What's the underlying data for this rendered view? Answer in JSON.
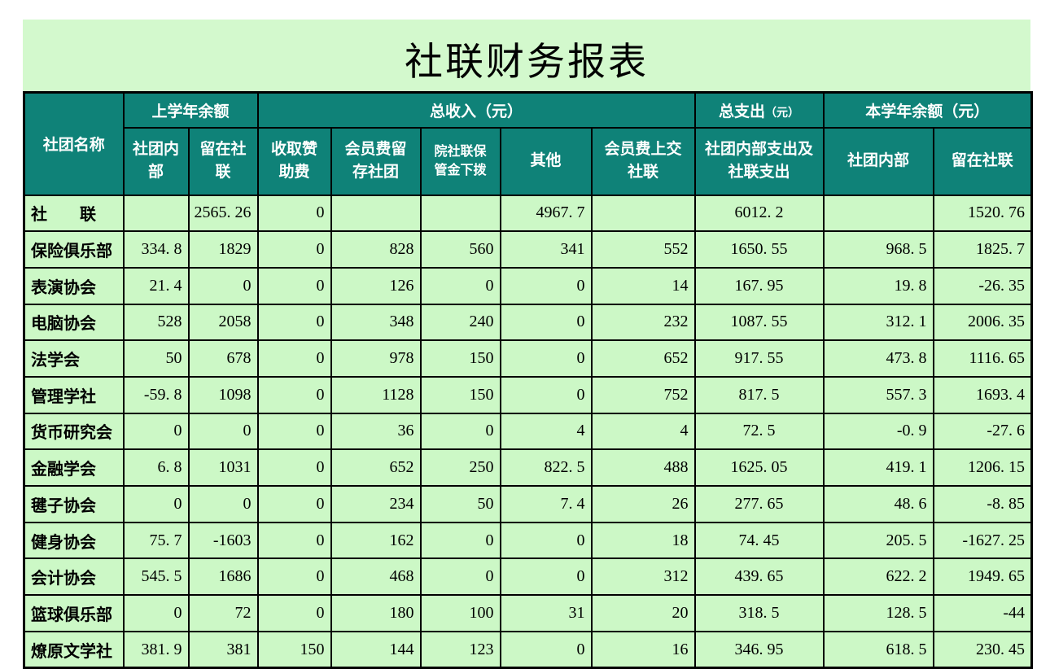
{
  "title": "社联财务报表",
  "colors": {
    "header_bg": "#0f8278",
    "cell_bg": "#ccf8c6",
    "band_bg": "#d3f9cd",
    "border": "#000000",
    "header_text": "#ffffff",
    "body_text": "#000000"
  },
  "table": {
    "headers": {
      "club_name": "社团名称",
      "last_year_balance": "上学年余额",
      "total_income": "总收入（元）",
      "total_expense": "总支出",
      "total_expense_unit": "（元）",
      "this_year_balance": "本学年余额（元）",
      "sub": [
        "社团内\n部",
        "留在社\n联",
        "收取赞\n助费",
        "会员费留\n存社团",
        "院社联保\n管金下拨",
        "其他",
        "会员费上交\n社联",
        "社团内部支出及\n社联支出",
        "社团内部",
        "留在社联"
      ]
    },
    "rows": [
      {
        "name": "社　　联",
        "cells": [
          "",
          "2565.26",
          "0",
          "",
          "",
          "4967.7",
          "",
          "6012.2",
          "",
          "1520.76"
        ]
      },
      {
        "name": "保险俱乐部",
        "cells": [
          "334.8",
          "1829",
          "0",
          "828",
          "560",
          "341",
          "552",
          "1650.55",
          "968.5",
          "1825.7"
        ]
      },
      {
        "name": "表演协会",
        "cells": [
          "21.4",
          "0",
          "0",
          "126",
          "0",
          "0",
          "14",
          "167.95",
          "19.8",
          "-26.35"
        ]
      },
      {
        "name": "电脑协会",
        "cells": [
          "528",
          "2058",
          "0",
          "348",
          "240",
          "0",
          "232",
          "1087.55",
          "312.1",
          "2006.35"
        ]
      },
      {
        "name": "法学会",
        "cells": [
          "50",
          "678",
          "0",
          "978",
          "150",
          "0",
          "652",
          "917.55",
          "473.8",
          "1116.65"
        ]
      },
      {
        "name": "管理学社",
        "cells": [
          "-59.8",
          "1098",
          "0",
          "1128",
          "150",
          "0",
          "752",
          "817.5",
          "557.3",
          "1693.4"
        ]
      },
      {
        "name": "货币研究会",
        "cells": [
          "0",
          "0",
          "0",
          "36",
          "0",
          "4",
          "4",
          "72.5",
          "-0.9",
          "-27.6"
        ]
      },
      {
        "name": "金融学会",
        "cells": [
          "6.8",
          "1031",
          "0",
          "652",
          "250",
          "822.5",
          "488",
          "1625.05",
          "419.1",
          "1206.15"
        ]
      },
      {
        "name": "毽子协会",
        "cells": [
          "0",
          "0",
          "0",
          "234",
          "50",
          "7.4",
          "26",
          "277.65",
          "48.6",
          "-8.85"
        ]
      },
      {
        "name": "健身协会",
        "cells": [
          "75.7",
          "-1603",
          "0",
          "162",
          "0",
          "0",
          "18",
          "74.45",
          "205.5",
          "-1627.25"
        ]
      },
      {
        "name": "会计协会",
        "cells": [
          "545.5",
          "1686",
          "0",
          "468",
          "0",
          "0",
          "312",
          "439.65",
          "622.2",
          "1949.65"
        ]
      },
      {
        "name": "篮球俱乐部",
        "cells": [
          "0",
          "72",
          "0",
          "180",
          "100",
          "31",
          "20",
          "318.5",
          "128.5",
          "-44"
        ]
      },
      {
        "name": "燎原文学社",
        "cells": [
          "381.9",
          "381",
          "150",
          "144",
          "123",
          "0",
          "16",
          "346.95",
          "618.5",
          "230.45"
        ]
      }
    ]
  }
}
